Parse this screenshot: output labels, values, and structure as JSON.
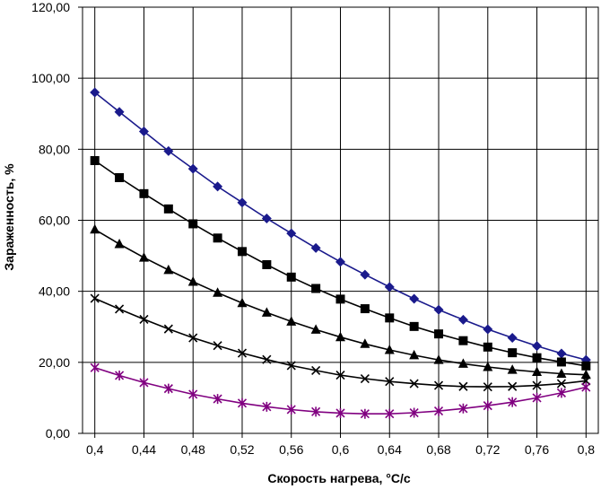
{
  "chart_data": {
    "type": "line",
    "title": "",
    "xlabel": "Скорость нагрева, °C/с",
    "ylabel": "Зараженность, %",
    "xlim": [
      0.39,
      0.81
    ],
    "ylim": [
      0,
      120
    ],
    "grid": true,
    "legend": "none",
    "x_ticks": [
      "0,4",
      "0,44",
      "0,48",
      "0,52",
      "0,56",
      "0,6",
      "0,64",
      "0,68",
      "0,72",
      "0,76",
      "0,8"
    ],
    "y_ticks": [
      "0,00",
      "20,00",
      "40,00",
      "60,00",
      "80,00",
      "100,00",
      "120,00"
    ],
    "x": [
      0.4,
      0.42,
      0.44,
      0.46,
      0.48,
      0.5,
      0.52,
      0.54,
      0.56,
      0.58,
      0.6,
      0.62,
      0.64,
      0.66,
      0.68,
      0.7,
      0.72,
      0.74,
      0.76,
      0.78,
      0.8
    ],
    "series": [
      {
        "marker": "diamond",
        "color": "#1a1a8c",
        "marker_color": "#1a1a8c",
        "values": [
          96.0,
          90.5,
          85.0,
          79.5,
          74.5,
          69.5,
          65.0,
          60.5,
          56.3,
          52.2,
          48.3,
          44.7,
          41.2,
          37.9,
          34.8,
          32.0,
          29.3,
          26.9,
          24.6,
          22.5,
          20.7
        ]
      },
      {
        "marker": "square",
        "color": "#000000",
        "marker_color": "#000000",
        "values": [
          76.8,
          72.0,
          67.5,
          63.2,
          59.0,
          55.0,
          51.2,
          47.5,
          44.0,
          40.8,
          37.8,
          35.1,
          32.5,
          30.1,
          28.0,
          26.1,
          24.3,
          22.7,
          21.3,
          20.1,
          19.0
        ]
      },
      {
        "marker": "triangle",
        "color": "#000000",
        "marker_color": "#000000",
        "values": [
          57.4,
          53.3,
          49.5,
          46.0,
          42.7,
          39.6,
          36.7,
          34.0,
          31.5,
          29.2,
          27.1,
          25.2,
          23.5,
          22.0,
          20.7,
          19.6,
          18.7,
          17.9,
          17.3,
          16.8,
          16.5
        ]
      },
      {
        "marker": "x",
        "color": "#000000",
        "marker_color": "#000000",
        "values": [
          38.0,
          35.0,
          32.1,
          29.4,
          26.9,
          24.7,
          22.6,
          20.8,
          19.1,
          17.7,
          16.4,
          15.4,
          14.6,
          14.0,
          13.5,
          13.2,
          13.1,
          13.2,
          13.5,
          14.0,
          14.8
        ]
      },
      {
        "marker": "star",
        "color": "#800080",
        "marker_color": "#800080",
        "values": [
          18.5,
          16.3,
          14.3,
          12.6,
          11.0,
          9.7,
          8.5,
          7.5,
          6.7,
          6.1,
          5.7,
          5.5,
          5.5,
          5.8,
          6.3,
          7.0,
          7.8,
          8.8,
          10.0,
          11.4,
          13.0
        ]
      }
    ]
  }
}
